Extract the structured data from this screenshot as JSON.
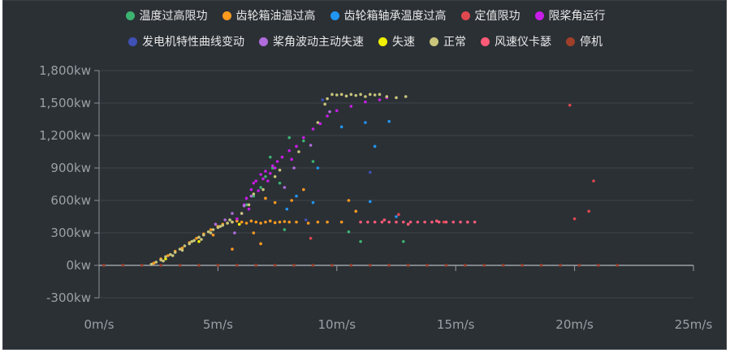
{
  "chart_data": {
    "type": "scatter",
    "x_unit": "m/s",
    "y_unit": "kw",
    "xlim": [
      0,
      25
    ],
    "ylim": [
      -300,
      1800
    ],
    "x_ticks": [
      "0m/s",
      "5m/s",
      "10m/s",
      "15m/s",
      "20m/s",
      "25m/s"
    ],
    "y_ticks": [
      "1,800kw",
      "1,500kw",
      "1,200kw",
      "900kw",
      "600kw",
      "300kw",
      "0kw",
      "-300kw"
    ],
    "x_tick_values": [
      0,
      5,
      10,
      15,
      20,
      25
    ],
    "y_tick_values": [
      1800,
      1500,
      1200,
      900,
      600,
      300,
      0,
      -300
    ],
    "grid": true,
    "legend_position": "top",
    "series": [
      {
        "name": "温度过高限功",
        "color": "#3cb371",
        "points": [
          [
            6.2,
            560
          ],
          [
            6.5,
            640
          ],
          [
            6.8,
            720
          ],
          [
            7.0,
            820
          ],
          [
            7.3,
            900
          ],
          [
            7.6,
            760
          ],
          [
            8.0,
            1180
          ],
          [
            8.6,
            1150
          ],
          [
            9.0,
            960
          ],
          [
            6.0,
            480
          ],
          [
            5.5,
            420
          ],
          [
            7.8,
            330
          ],
          [
            10.5,
            310
          ],
          [
            11.0,
            220
          ],
          [
            12.8,
            220
          ],
          [
            7.2,
            1000
          ]
        ]
      },
      {
        "name": "齿轮箱油温过高",
        "color": "#ff9a1f",
        "points": [
          [
            2.3,
            20
          ],
          [
            2.6,
            60
          ],
          [
            2.9,
            90
          ],
          [
            3.2,
            130
          ],
          [
            3.5,
            160
          ],
          [
            3.8,
            210
          ],
          [
            4.1,
            250
          ],
          [
            4.4,
            290
          ],
          [
            4.7,
            330
          ],
          [
            5.0,
            360
          ],
          [
            5.2,
            380
          ],
          [
            5.4,
            390
          ],
          [
            5.6,
            400
          ],
          [
            5.8,
            410
          ],
          [
            6.0,
            400
          ],
          [
            6.2,
            390
          ],
          [
            6.4,
            410
          ],
          [
            6.6,
            400
          ],
          [
            6.8,
            390
          ],
          [
            7.0,
            400
          ],
          [
            7.2,
            410
          ],
          [
            7.4,
            395
          ],
          [
            7.6,
            400
          ],
          [
            7.8,
            405
          ],
          [
            8.0,
            400
          ],
          [
            8.3,
            400
          ],
          [
            8.8,
            390
          ],
          [
            9.2,
            400
          ],
          [
            9.6,
            400
          ],
          [
            10.2,
            400
          ],
          [
            6.5,
            300
          ],
          [
            7.0,
            620
          ],
          [
            7.4,
            580
          ],
          [
            8.1,
            600
          ],
          [
            8.6,
            700
          ],
          [
            6.8,
            200
          ],
          [
            10.5,
            600
          ],
          [
            10.8,
            500
          ],
          [
            5.6,
            150
          ],
          [
            4.8,
            280
          ]
        ]
      },
      {
        "name": "齿轮箱轴承温度过高",
        "color": "#2196f3",
        "points": [
          [
            8.3,
            640
          ],
          [
            9.2,
            900
          ],
          [
            10.2,
            1280
          ],
          [
            11.2,
            1320
          ],
          [
            11.6,
            1100
          ],
          [
            12.2,
            1330
          ],
          [
            11.4,
            590
          ],
          [
            12.5,
            450
          ],
          [
            9.0,
            580
          ],
          [
            7.9,
            520
          ]
        ]
      },
      {
        "name": "定值限功",
        "color": "#e0484f",
        "points": [
          [
            19.8,
            1480
          ],
          [
            20.8,
            780
          ],
          [
            20.6,
            500
          ],
          [
            20.0,
            430
          ],
          [
            14.5,
            400
          ],
          [
            15.5,
            400
          ],
          [
            8.9,
            250
          ],
          [
            12.6,
            470
          ]
        ]
      },
      {
        "name": "限桨角运行",
        "color": "#c81ce8",
        "points": [
          [
            5.8,
            430
          ],
          [
            6.0,
            480
          ],
          [
            6.1,
            560
          ],
          [
            6.2,
            620
          ],
          [
            6.4,
            700
          ],
          [
            6.5,
            760
          ],
          [
            6.6,
            780
          ],
          [
            6.8,
            840
          ],
          [
            6.9,
            800
          ],
          [
            7.0,
            870
          ],
          [
            7.2,
            850
          ],
          [
            7.4,
            900
          ],
          [
            7.5,
            960
          ],
          [
            7.7,
            1000
          ],
          [
            8.0,
            1060
          ],
          [
            8.3,
            1100
          ],
          [
            8.6,
            1180
          ],
          [
            9.0,
            1260
          ],
          [
            9.3,
            1310
          ],
          [
            9.6,
            1380
          ],
          [
            10.0,
            1430
          ],
          [
            10.6,
            1470
          ],
          [
            11.2,
            1510
          ],
          [
            11.8,
            1530
          ],
          [
            12.1,
            1550
          ],
          [
            6.3,
            520
          ],
          [
            6.7,
            690
          ],
          [
            7.1,
            780
          ],
          [
            7.3,
            920
          ],
          [
            8.1,
            980
          ]
        ]
      },
      {
        "name": "发电机特性曲线变动",
        "color": "#3f51b5",
        "points": [
          [
            9.4,
            1530
          ],
          [
            8.7,
            420
          ],
          [
            11.4,
            860
          ]
        ]
      },
      {
        "name": "桨角波动主动失速",
        "color": "#b06cdc",
        "points": [
          [
            5.3,
            420
          ],
          [
            5.6,
            480
          ],
          [
            6.1,
            550
          ],
          [
            6.4,
            640
          ],
          [
            7.8,
            720
          ],
          [
            8.2,
            900
          ],
          [
            8.9,
            1110
          ],
          [
            9.7,
            1420
          ],
          [
            4.9,
            380
          ],
          [
            5.7,
            300
          ]
        ]
      },
      {
        "name": "失速",
        "color": "#f0f000",
        "points": [
          [
            2.8,
            60
          ],
          [
            4.2,
            220
          ],
          [
            5.9,
            380
          ]
        ]
      },
      {
        "name": "正常",
        "color": "#c9c57a",
        "points": [
          [
            2.2,
            10
          ],
          [
            2.4,
            30
          ],
          [
            2.6,
            50
          ],
          [
            2.8,
            80
          ],
          [
            3.0,
            100
          ],
          [
            3.2,
            120
          ],
          [
            3.4,
            150
          ],
          [
            3.6,
            180
          ],
          [
            3.8,
            200
          ],
          [
            4.0,
            230
          ],
          [
            4.2,
            260
          ],
          [
            4.4,
            280
          ],
          [
            4.6,
            310
          ],
          [
            4.8,
            330
          ],
          [
            5.0,
            350
          ],
          [
            5.2,
            370
          ],
          [
            5.4,
            390
          ],
          [
            5.6,
            400
          ],
          [
            2.7,
            40
          ],
          [
            3.1,
            90
          ],
          [
            3.5,
            140
          ],
          [
            3.9,
            220
          ],
          [
            4.3,
            240
          ],
          [
            4.7,
            300
          ],
          [
            5.1,
            360
          ],
          [
            5.5,
            420
          ],
          [
            6.5,
            660
          ],
          [
            7.4,
            820
          ],
          [
            9.6,
            1540
          ],
          [
            9.8,
            1580
          ],
          [
            10.0,
            1575
          ],
          [
            10.2,
            1580
          ],
          [
            10.4,
            1565
          ],
          [
            10.6,
            1580
          ],
          [
            10.8,
            1570
          ],
          [
            11.0,
            1580
          ],
          [
            11.2,
            1560
          ],
          [
            11.4,
            1580
          ],
          [
            11.6,
            1575
          ],
          [
            11.8,
            1580
          ],
          [
            12.1,
            1560
          ],
          [
            12.5,
            1550
          ],
          [
            12.9,
            1560
          ],
          [
            9.5,
            1490
          ],
          [
            6.0,
            480
          ],
          [
            6.3,
            560
          ],
          [
            6.9,
            700
          ],
          [
            7.6,
            880
          ],
          [
            8.4,
            1050
          ],
          [
            9.2,
            1320
          ]
        ]
      },
      {
        "name": "风速仪卡瑟",
        "color": "#ff5a78",
        "points": [
          [
            11.0,
            400
          ],
          [
            11.3,
            400
          ],
          [
            11.6,
            400
          ],
          [
            11.9,
            400
          ],
          [
            12.2,
            400
          ],
          [
            12.5,
            400
          ],
          [
            12.8,
            400
          ],
          [
            13.1,
            400
          ],
          [
            13.4,
            400
          ],
          [
            13.7,
            400
          ],
          [
            14.0,
            400
          ],
          [
            14.3,
            400
          ],
          [
            14.6,
            400
          ],
          [
            14.9,
            400
          ],
          [
            15.2,
            400
          ],
          [
            15.5,
            400
          ],
          [
            15.8,
            400
          ],
          [
            12.0,
            420
          ],
          [
            13.0,
            380
          ],
          [
            14.2,
            410
          ]
        ]
      },
      {
        "name": "停机",
        "color": "#a0402a",
        "points": [
          [
            0.2,
            0
          ],
          [
            1.0,
            0
          ],
          [
            1.8,
            0
          ],
          [
            2.6,
            0
          ],
          [
            3.4,
            0
          ],
          [
            4.2,
            0
          ],
          [
            5.0,
            0
          ],
          [
            5.8,
            0
          ],
          [
            6.6,
            0
          ],
          [
            7.4,
            0
          ],
          [
            8.2,
            0
          ],
          [
            9.0,
            0
          ],
          [
            9.8,
            0
          ],
          [
            10.6,
            0
          ],
          [
            11.4,
            0
          ],
          [
            12.2,
            0
          ],
          [
            13.0,
            0
          ],
          [
            13.8,
            0
          ],
          [
            14.6,
            0
          ],
          [
            15.4,
            0
          ],
          [
            16.2,
            0
          ],
          [
            17.0,
            0
          ],
          [
            17.8,
            0
          ],
          [
            18.6,
            0
          ],
          [
            19.4,
            0
          ],
          [
            20.2,
            0
          ],
          [
            21.0,
            0
          ],
          [
            21.8,
            0
          ]
        ]
      }
    ]
  }
}
